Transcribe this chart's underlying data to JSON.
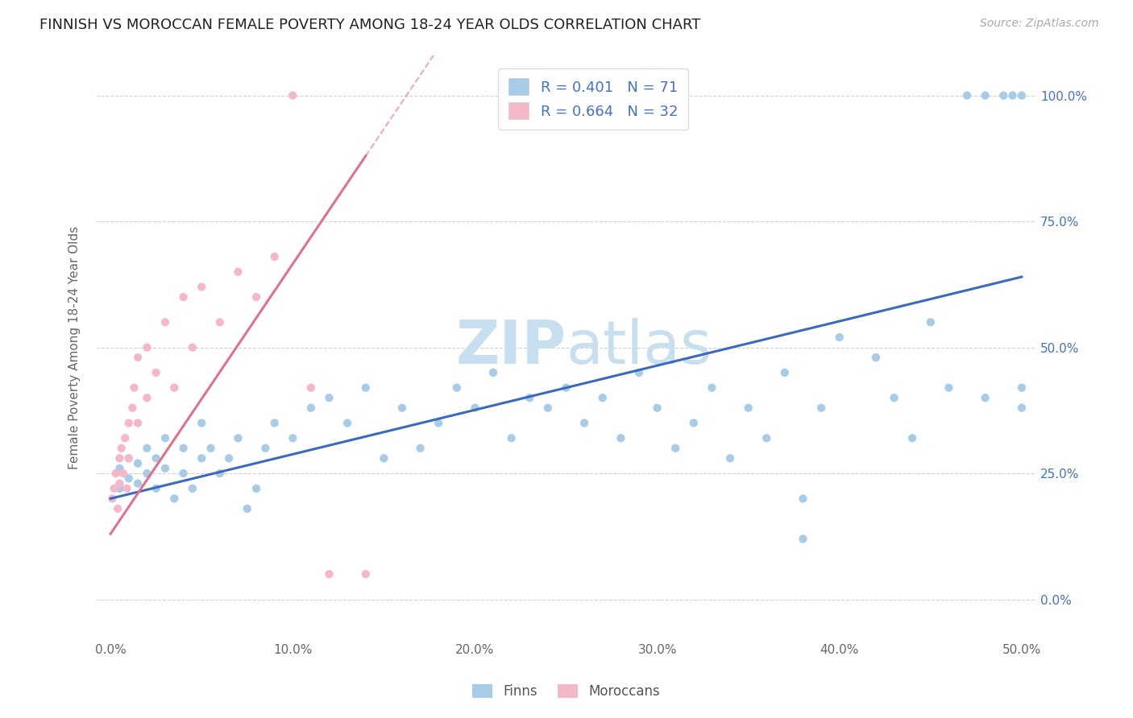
{
  "title": "FINNISH VS MOROCCAN FEMALE POVERTY AMONG 18-24 YEAR OLDS CORRELATION CHART",
  "source": "Source: ZipAtlas.com",
  "ylabel": "Female Poverty Among 18-24 Year Olds",
  "xlim": [
    -0.008,
    0.508
  ],
  "ylim": [
    -0.08,
    1.08
  ],
  "xticks": [
    0.0,
    0.1,
    0.2,
    0.3,
    0.4,
    0.5
  ],
  "xtick_labels": [
    "0.0%",
    "10.0%",
    "20.0%",
    "30.0%",
    "40.0%",
    "50.0%"
  ],
  "yticks": [
    0.0,
    0.25,
    0.5,
    0.75,
    1.0
  ],
  "ytick_labels": [
    "0.0%",
    "25.0%",
    "50.0%",
    "75.0%",
    "100.0%"
  ],
  "finns_R": 0.401,
  "finns_N": 71,
  "moroccans_R": 0.664,
  "moroccans_N": 32,
  "color_finns": "#a8cce8",
  "color_moroccans": "#f4b8c8",
  "color_finns_line": "#3a6abf",
  "color_moroccans_line": "#e07090",
  "legend_text_color": "#4472c4",
  "title_color": "#222222",
  "watermark_color": "#c8dff0",
  "background_color": "#ffffff",
  "grid_color": "#cccccc",
  "finns_x": [
    0.005,
    0.005,
    0.01,
    0.01,
    0.015,
    0.015,
    0.02,
    0.02,
    0.025,
    0.025,
    0.03,
    0.03,
    0.035,
    0.04,
    0.04,
    0.045,
    0.05,
    0.05,
    0.055,
    0.06,
    0.065,
    0.07,
    0.075,
    0.08,
    0.085,
    0.09,
    0.1,
    0.11,
    0.12,
    0.13,
    0.14,
    0.15,
    0.16,
    0.17,
    0.18,
    0.19,
    0.2,
    0.21,
    0.22,
    0.23,
    0.24,
    0.25,
    0.26,
    0.27,
    0.28,
    0.29,
    0.3,
    0.31,
    0.32,
    0.33,
    0.34,
    0.35,
    0.36,
    0.37,
    0.38,
    0.39,
    0.4,
    0.42,
    0.43,
    0.44,
    0.45,
    0.46,
    0.47,
    0.48,
    0.49,
    0.495,
    0.5,
    0.5,
    0.5,
    0.38,
    0.48
  ],
  "finns_y": [
    0.22,
    0.26,
    0.24,
    0.28,
    0.23,
    0.27,
    0.25,
    0.3,
    0.22,
    0.28,
    0.26,
    0.32,
    0.2,
    0.25,
    0.3,
    0.22,
    0.28,
    0.35,
    0.3,
    0.25,
    0.28,
    0.32,
    0.18,
    0.22,
    0.3,
    0.35,
    0.32,
    0.38,
    0.4,
    0.35,
    0.42,
    0.28,
    0.38,
    0.3,
    0.35,
    0.42,
    0.38,
    0.45,
    0.32,
    0.4,
    0.38,
    0.42,
    0.35,
    0.4,
    0.32,
    0.45,
    0.38,
    0.3,
    0.35,
    0.42,
    0.28,
    0.38,
    0.32,
    0.45,
    0.2,
    0.38,
    0.52,
    0.48,
    0.4,
    0.32,
    0.55,
    0.42,
    1.0,
    1.0,
    1.0,
    1.0,
    1.0,
    0.42,
    0.38,
    0.12,
    0.4
  ],
  "moroccans_x": [
    0.001,
    0.002,
    0.003,
    0.004,
    0.005,
    0.005,
    0.006,
    0.007,
    0.008,
    0.009,
    0.01,
    0.01,
    0.012,
    0.013,
    0.015,
    0.015,
    0.02,
    0.02,
    0.025,
    0.03,
    0.035,
    0.04,
    0.045,
    0.05,
    0.06,
    0.07,
    0.08,
    0.09,
    0.1,
    0.11,
    0.12,
    0.14
  ],
  "moroccans_y": [
    0.2,
    0.22,
    0.25,
    0.18,
    0.28,
    0.23,
    0.3,
    0.25,
    0.32,
    0.22,
    0.35,
    0.28,
    0.38,
    0.42,
    0.35,
    0.48,
    0.4,
    0.5,
    0.45,
    0.55,
    0.42,
    0.6,
    0.5,
    0.62,
    0.55,
    0.65,
    0.6,
    0.68,
    1.0,
    0.42,
    0.05,
    0.05
  ],
  "finns_line_x": [
    0.0,
    0.5
  ],
  "finns_line_y": [
    0.2,
    0.64
  ],
  "moroccans_line_x": [
    0.0,
    0.14
  ],
  "moroccans_line_y": [
    0.13,
    0.88
  ]
}
